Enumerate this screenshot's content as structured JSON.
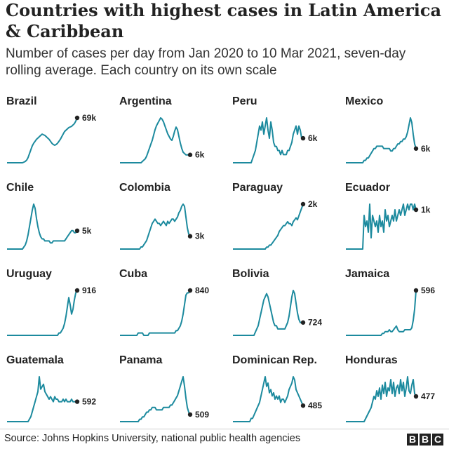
{
  "title": "Countries with highest cases in Latin America & Caribbean",
  "subtitle": "Number of cases per day from Jan 2020 to 10 Mar 2021, seven-day rolling average. Each country on its own scale",
  "source": "Source: Johns Hopkins University, national public health agencies",
  "logo": [
    "B",
    "B",
    "C"
  ],
  "colors": {
    "line": "#1c8a9e",
    "dot": "#222222",
    "text": "#222222"
  },
  "chart_data": {
    "type": "line",
    "x_range": [
      "Jan 2020",
      "10 Mar 2021"
    ],
    "note": "small multiples, each panel on its own y scale; last point labelled",
    "panels": [
      {
        "name": "Brazil",
        "last_label": "69k",
        "values": [
          0,
          0,
          0,
          0,
          0,
          0,
          0,
          0,
          0,
          0,
          0,
          0,
          1,
          2,
          4,
          8,
          14,
          20,
          26,
          30,
          33,
          36,
          38,
          40,
          42,
          44,
          43,
          42,
          40,
          38,
          36,
          33,
          30,
          28,
          27,
          28,
          30,
          33,
          36,
          40,
          44,
          48,
          50,
          52,
          54,
          55,
          56,
          58,
          60,
          64,
          69
        ]
      },
      {
        "name": "Argentina",
        "last_label": "6k",
        "values": [
          0,
          0,
          0,
          0,
          0,
          0,
          0,
          0,
          0,
          0,
          0,
          0,
          0,
          0,
          0,
          0,
          1,
          2,
          3,
          5,
          8,
          11,
          14,
          17,
          21,
          25,
          28,
          30,
          32,
          34,
          33,
          31,
          28,
          25,
          22,
          20,
          18,
          17,
          20,
          24,
          27,
          25,
          20,
          15,
          11,
          8,
          7,
          6,
          6,
          6,
          6
        ]
      },
      {
        "name": "Peru",
        "last_label": "6k",
        "values": [
          0,
          0,
          0,
          0,
          0,
          0,
          0,
          0,
          0,
          0,
          0,
          0,
          0,
          0,
          1,
          2,
          3,
          5,
          7,
          9,
          8,
          10,
          7,
          9,
          11,
          8,
          6,
          10,
          8,
          5,
          4,
          4,
          3,
          3,
          2,
          3,
          2,
          2,
          2,
          3,
          3,
          4,
          5,
          7,
          8,
          9,
          7,
          9,
          8,
          6,
          6
        ]
      },
      {
        "name": "Mexico",
        "last_label": "6k",
        "values": [
          0,
          0,
          0,
          0,
          0,
          0,
          0,
          0,
          0,
          0,
          0,
          0,
          0,
          1,
          1,
          2,
          2,
          3,
          4,
          5,
          6,
          6,
          7,
          7,
          7,
          7,
          7,
          6,
          6,
          6,
          6,
          6,
          5,
          5,
          6,
          6,
          7,
          8,
          8,
          9,
          9,
          10,
          10,
          11,
          13,
          16,
          19,
          17,
          12,
          8,
          6
        ]
      },
      {
        "name": "Chile",
        "last_label": "5k",
        "values": [
          0,
          0,
          0,
          0,
          0,
          0,
          0,
          0,
          0,
          0,
          0,
          0,
          1,
          2,
          4,
          7,
          11,
          15,
          19,
          22,
          20,
          15,
          11,
          8,
          6,
          5,
          5,
          4,
          4,
          4,
          4,
          3,
          3,
          4,
          4,
          4,
          4,
          4,
          4,
          4,
          4,
          4,
          5,
          6,
          7,
          8,
          9,
          9,
          8,
          8,
          9
        ]
      },
      {
        "name": "Colombia",
        "last_label": "3k",
        "values": [
          0,
          0,
          0,
          0,
          0,
          0,
          0,
          0,
          0,
          0,
          0,
          0,
          0,
          0,
          0,
          1,
          1,
          2,
          3,
          4,
          6,
          8,
          10,
          12,
          13,
          14,
          13,
          12,
          12,
          11,
          12,
          13,
          12,
          11,
          13,
          12,
          13,
          14,
          14,
          13,
          14,
          15,
          17,
          18,
          20,
          21,
          20,
          15,
          10,
          7,
          6
        ]
      },
      {
        "name": "Paraguay",
        "last_label": "2k",
        "values": [
          0,
          0,
          0,
          0,
          0,
          0,
          0,
          0,
          0,
          0,
          0,
          0,
          0,
          0,
          0,
          0,
          0,
          0,
          0,
          0,
          0,
          0,
          0,
          0,
          1,
          1,
          2,
          2,
          3,
          4,
          5,
          6,
          7,
          9,
          10,
          11,
          12,
          12,
          13,
          14,
          13,
          13,
          12,
          14,
          15,
          16,
          15,
          17,
          19,
          21,
          23
        ]
      },
      {
        "name": "Ecuador",
        "last_label": "1k",
        "values": [
          0,
          0,
          0,
          0,
          0,
          0,
          0,
          0,
          0,
          0,
          0,
          0,
          0,
          6,
          4,
          5,
          3,
          8,
          2,
          6,
          5,
          4,
          5,
          3,
          6,
          4,
          5,
          3,
          7,
          5,
          6,
          4,
          5,
          6,
          5,
          7,
          5,
          6,
          7,
          6,
          7,
          8,
          6,
          7,
          8,
          7,
          8,
          8,
          7,
          8,
          7
        ]
      },
      {
        "name": "Uruguay",
        "last_label": "916",
        "values": [
          0,
          0,
          0,
          0,
          0,
          0,
          0,
          0,
          0,
          0,
          0,
          0,
          0,
          0,
          0,
          0,
          0,
          0,
          0,
          0,
          0,
          0,
          0,
          0,
          0,
          0,
          0,
          0,
          0,
          0,
          0,
          0,
          0,
          0,
          0,
          0,
          0,
          1,
          1,
          2,
          3,
          5,
          8,
          12,
          16,
          13,
          9,
          11,
          15,
          18,
          19
        ]
      },
      {
        "name": "Cuba",
        "last_label": "840",
        "values": [
          0,
          0,
          0,
          0,
          0,
          0,
          0,
          0,
          0,
          0,
          0,
          0,
          0,
          1,
          1,
          1,
          1,
          0,
          0,
          0,
          0,
          1,
          1,
          1,
          1,
          1,
          1,
          1,
          1,
          1,
          1,
          1,
          1,
          1,
          1,
          1,
          1,
          1,
          1,
          1,
          2,
          2,
          3,
          4,
          6,
          9,
          13,
          17,
          18,
          18,
          19
        ]
      },
      {
        "name": "Bolivia",
        "last_label": "724",
        "values": [
          0,
          0,
          0,
          0,
          0,
          0,
          0,
          0,
          0,
          0,
          0,
          0,
          0,
          0,
          0,
          0,
          1,
          2,
          3,
          5,
          7,
          9,
          11,
          12,
          13,
          12,
          10,
          8,
          6,
          4,
          3,
          3,
          2,
          2,
          2,
          2,
          2,
          2,
          3,
          4,
          6,
          9,
          12,
          14,
          13,
          10,
          7,
          5,
          4,
          4,
          4
        ]
      },
      {
        "name": "Jamaica",
        "last_label": "596",
        "values": [
          0,
          0,
          0,
          0,
          0,
          0,
          0,
          0,
          0,
          0,
          0,
          0,
          0,
          0,
          0,
          0,
          0,
          0,
          0,
          0,
          0,
          0,
          0,
          0,
          0,
          0,
          1,
          1,
          2,
          2,
          2,
          3,
          2,
          2,
          3,
          4,
          5,
          3,
          2,
          2,
          2,
          2,
          3,
          3,
          3,
          3,
          3,
          4,
          8,
          14,
          24
        ]
      },
      {
        "name": "Guatemala",
        "last_label": "592",
        "values": [
          0,
          0,
          0,
          0,
          0,
          0,
          0,
          0,
          0,
          0,
          0,
          0,
          0,
          0,
          0,
          0,
          1,
          2,
          4,
          6,
          8,
          10,
          12,
          18,
          13,
          14,
          15,
          12,
          11,
          10,
          9,
          10,
          9,
          8,
          10,
          9,
          9,
          8,
          8,
          8,
          9,
          8,
          9,
          8,
          8,
          8,
          9,
          8,
          8,
          8,
          8
        ]
      },
      {
        "name": "Panama",
        "last_label": "509",
        "values": [
          0,
          0,
          0,
          0,
          0,
          0,
          0,
          0,
          0,
          0,
          0,
          0,
          0,
          0,
          1,
          1,
          2,
          2,
          3,
          4,
          4,
          5,
          5,
          6,
          6,
          6,
          5,
          5,
          5,
          5,
          5,
          6,
          6,
          6,
          6,
          6,
          7,
          7,
          8,
          9,
          10,
          11,
          13,
          15,
          17,
          19,
          15,
          10,
          6,
          4,
          3
        ]
      },
      {
        "name": "Dominican Rep.",
        "last_label": "485",
        "values": [
          0,
          0,
          0,
          0,
          0,
          0,
          0,
          0,
          0,
          0,
          0,
          0,
          0,
          1,
          1,
          2,
          3,
          4,
          5,
          6,
          8,
          10,
          12,
          14,
          11,
          12,
          9,
          10,
          8,
          9,
          7,
          8,
          7,
          8,
          6,
          7,
          7,
          6,
          7,
          8,
          10,
          11,
          12,
          14,
          13,
          10,
          9,
          8,
          7,
          6,
          5
        ]
      },
      {
        "name": "Honduras",
        "last_label": "477",
        "values": [
          0,
          0,
          0,
          0,
          0,
          0,
          0,
          0,
          0,
          0,
          0,
          0,
          0,
          0,
          1,
          2,
          3,
          4,
          5,
          7,
          9,
          8,
          11,
          9,
          12,
          8,
          13,
          10,
          14,
          9,
          12,
          11,
          15,
          10,
          14,
          9,
          12,
          13,
          10,
          15,
          11,
          14,
          9,
          12,
          16,
          11,
          10,
          13,
          15,
          10,
          9
        ]
      }
    ]
  }
}
